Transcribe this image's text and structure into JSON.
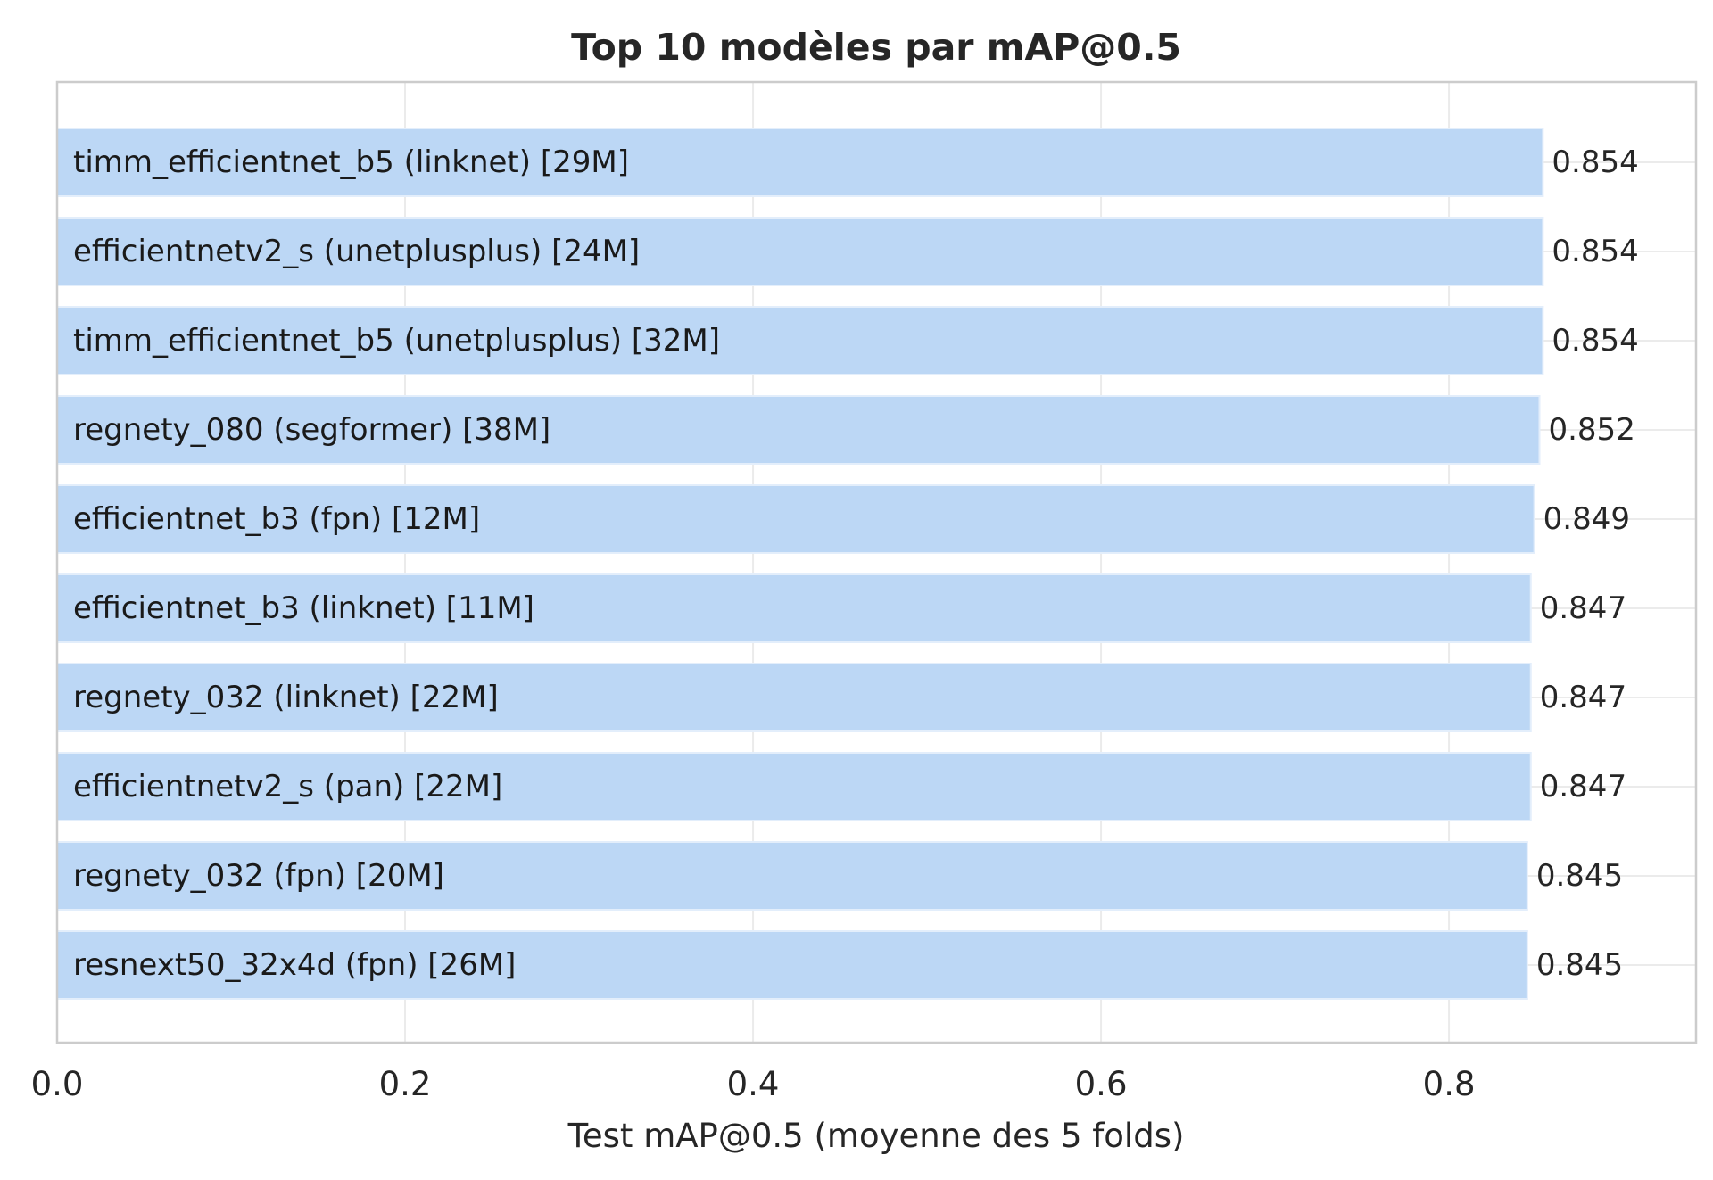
{
  "chart_data": {
    "type": "bar",
    "orientation": "horizontal",
    "title": "Top 10 modèles par mAP@0.5",
    "xlabel": "Test mAP@0.5 (moyenne des 5 folds)",
    "ylabel": "",
    "xlim": [
      0.0,
      0.942
    ],
    "xticks": [
      0.0,
      0.2,
      0.4,
      0.6,
      0.8
    ],
    "xtick_labels": [
      "0.0",
      "0.2",
      "0.4",
      "0.6",
      "0.8"
    ],
    "grid": true,
    "categories": [
      "timm_efficientnet_b5 (linknet) [29M]",
      "efficientnetv2_s (unetplusplus) [24M]",
      "timm_efficientnet_b5 (unetplusplus) [32M]",
      "regnety_080 (segformer) [38M]",
      "efficientnet_b3 (fpn) [12M]",
      "efficientnet_b3 (linknet) [11M]",
      "regnety_032 (linknet) [22M]",
      "efficientnetv2_s (pan) [22M]",
      "regnety_032 (fpn) [20M]",
      "resnext50_32x4d (fpn) [26M]"
    ],
    "values": [
      0.854,
      0.854,
      0.854,
      0.852,
      0.849,
      0.847,
      0.847,
      0.847,
      0.845,
      0.845
    ],
    "value_labels": [
      "0.854",
      "0.854",
      "0.854",
      "0.852",
      "0.849",
      "0.847",
      "0.847",
      "0.847",
      "0.845",
      "0.845"
    ],
    "colors": {
      "bar": "#bcd7f5",
      "bar_edge": "#e3eefb",
      "grid": "#ebebeb",
      "frame": "#cccccc",
      "text": "#262626"
    }
  }
}
